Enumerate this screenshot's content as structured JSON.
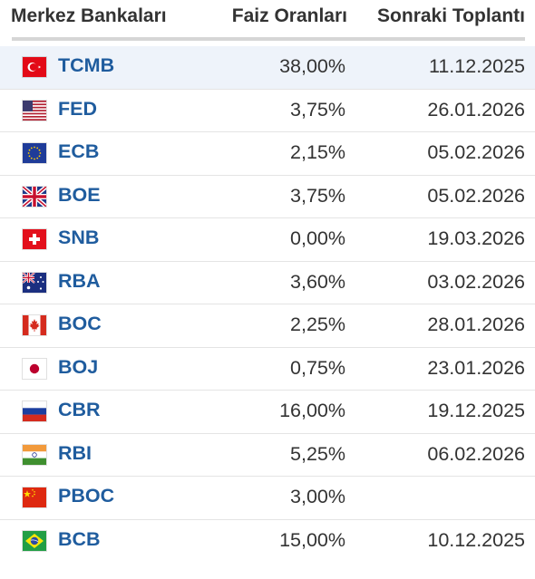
{
  "header": {
    "bank": "Merkez Bankaları",
    "rate": "Faiz Oranları",
    "next": "Sonraki Toplantı"
  },
  "rows": [
    {
      "code": "TCMB",
      "flag": "turkey-flag-icon",
      "rate": "38,00%",
      "next": "11.12.2025"
    },
    {
      "code": "FED",
      "flag": "usa-flag-icon",
      "rate": "3,75%",
      "next": "26.01.2026"
    },
    {
      "code": "ECB",
      "flag": "eu-flag-icon",
      "rate": "2,15%",
      "next": "05.02.2026"
    },
    {
      "code": "BOE",
      "flag": "uk-flag-icon",
      "rate": "3,75%",
      "next": "05.02.2026"
    },
    {
      "code": "SNB",
      "flag": "switzerland-flag-icon",
      "rate": "0,00%",
      "next": "19.03.2026"
    },
    {
      "code": "RBA",
      "flag": "australia-flag-icon",
      "rate": "3,60%",
      "next": "03.02.2026"
    },
    {
      "code": "BOC",
      "flag": "canada-flag-icon",
      "rate": "2,25%",
      "next": "28.01.2026"
    },
    {
      "code": "BOJ",
      "flag": "japan-flag-icon",
      "rate": "0,75%",
      "next": "23.01.2026"
    },
    {
      "code": "CBR",
      "flag": "russia-flag-icon",
      "rate": "16,00%",
      "next": "19.12.2025"
    },
    {
      "code": "RBI",
      "flag": "india-flag-icon",
      "rate": "5,25%",
      "next": "06.02.2026"
    },
    {
      "code": "PBOC",
      "flag": "china-flag-icon",
      "rate": "3,00%",
      "next": ""
    },
    {
      "code": "BCB",
      "flag": "brazil-flag-icon",
      "rate": "15,00%",
      "next": "10.12.2025"
    }
  ]
}
